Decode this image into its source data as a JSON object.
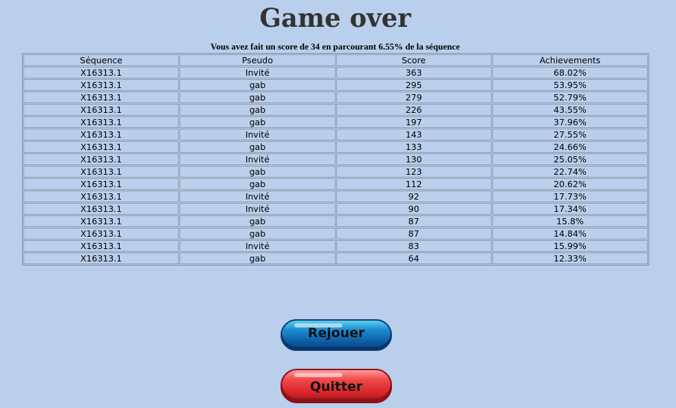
{
  "title": "Game over",
  "subtitle": "Vous avez fait un score de 34 en parcourant 6.55% de la séquence",
  "table": {
    "headers": [
      "Séquence",
      "Pseudo",
      "Score",
      "Achievements"
    ],
    "rows": [
      [
        "X16313.1",
        "Invité",
        "363",
        "68.02%"
      ],
      [
        "X16313.1",
        "gab",
        "295",
        "53.95%"
      ],
      [
        "X16313.1",
        "gab",
        "279",
        "52.79%"
      ],
      [
        "X16313.1",
        "gab",
        "226",
        "43.55%"
      ],
      [
        "X16313.1",
        "gab",
        "197",
        "37.96%"
      ],
      [
        "X16313.1",
        "Invité",
        "143",
        "27.55%"
      ],
      [
        "X16313.1",
        "gab",
        "133",
        "24.66%"
      ],
      [
        "X16313.1",
        "Invité",
        "130",
        "25.05%"
      ],
      [
        "X16313.1",
        "gab",
        "123",
        "22.74%"
      ],
      [
        "X16313.1",
        "gab",
        "112",
        "20.62%"
      ],
      [
        "X16313.1",
        "Invité",
        "92",
        "17.73%"
      ],
      [
        "X16313.1",
        "Invité",
        "90",
        "17.34%"
      ],
      [
        "X16313.1",
        "gab",
        "87",
        "15.8%"
      ],
      [
        "X16313.1",
        "gab",
        "87",
        "14.84%"
      ],
      [
        "X16313.1",
        "Invité",
        "83",
        "15.99%"
      ],
      [
        "X16313.1",
        "gab",
        "64",
        "12.33%"
      ]
    ]
  },
  "buttons": {
    "replay_label": "Rejouer",
    "quit_label": "Quitter"
  },
  "colors": {
    "background": "#b9cfec",
    "replay_button": "#1f8fd3",
    "quit_button": "#e03a3a"
  }
}
